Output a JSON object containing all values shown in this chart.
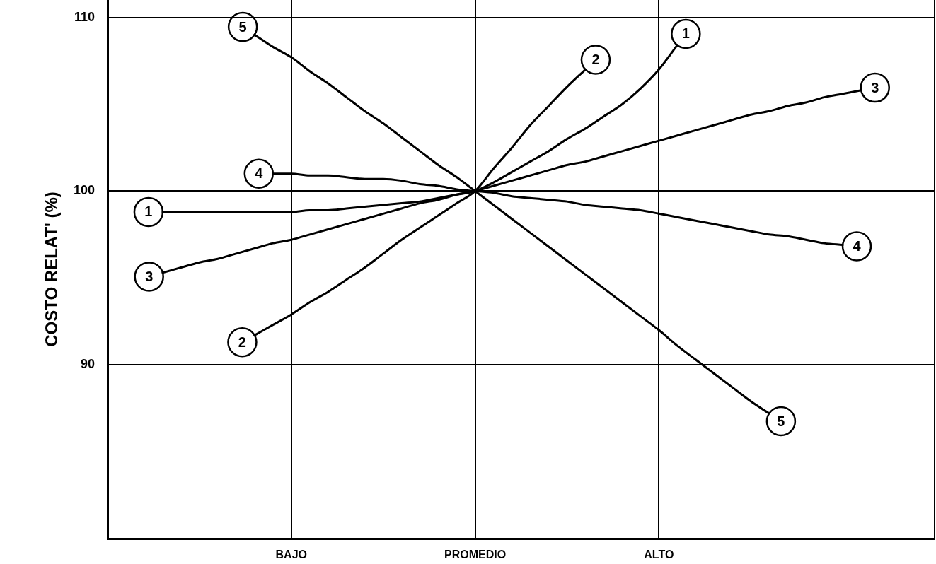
{
  "chart_data": {
    "type": "line",
    "ylabel": "COSTO RELAT' (%)",
    "categories": [
      null,
      null,
      null,
      null,
      null,
      null,
      null,
      null,
      null,
      null,
      "BAJO",
      null,
      null,
      null,
      null,
      null,
      null,
      null,
      null,
      null,
      "PROMEDIO",
      null,
      null,
      null,
      null,
      null,
      null,
      null,
      null,
      null,
      "ALTO",
      null,
      null,
      null,
      null,
      null,
      null,
      null,
      null,
      null,
      null,
      null,
      null,
      null,
      null,
      null
    ],
    "ylim": [
      80,
      111
    ],
    "yticks": [
      90,
      100,
      110
    ],
    "grid": true,
    "marker": "none",
    "series": [
      {
        "name": "1",
        "color": "#000000",
        "values": [
          null,
          null,
          null,
          98.8,
          98.8,
          98.8,
          98.8,
          98.8,
          98.8,
          98.8,
          98.8,
          98.9,
          98.9,
          99.0,
          99.1,
          99.2,
          99.3,
          99.4,
          99.6,
          99.8,
          100,
          100.5,
          101.1,
          101.7,
          102.3,
          103.0,
          103.6,
          104.3,
          105.0,
          105.9,
          107.0,
          108.4,
          null,
          null,
          null,
          null,
          null,
          null,
          null,
          null,
          null,
          null,
          null,
          null,
          null,
          null
        ]
      },
      {
        "name": "2",
        "color": "#000000",
        "values": [
          null,
          null,
          null,
          null,
          null,
          null,
          null,
          null,
          91.7,
          92.3,
          92.9,
          93.6,
          94.2,
          94.9,
          95.6,
          96.4,
          97.2,
          97.9,
          98.6,
          99.3,
          100,
          101.3,
          102.5,
          103.8,
          104.9,
          106.0,
          107.0,
          null,
          null,
          null,
          null,
          null,
          null,
          null,
          null,
          null,
          null,
          null,
          null,
          null,
          null,
          null,
          null,
          null,
          null,
          null
        ]
      },
      {
        "name": "3",
        "color": "#000000",
        "values": [
          null,
          null,
          null,
          95.3,
          95.6,
          95.9,
          96.1,
          96.4,
          96.7,
          97.0,
          97.2,
          97.5,
          97.8,
          98.1,
          98.4,
          98.7,
          99.0,
          99.3,
          99.5,
          99.8,
          100,
          100.3,
          100.6,
          100.9,
          101.2,
          101.5,
          101.7,
          102.0,
          102.3,
          102.6,
          102.9,
          103.2,
          103.5,
          103.8,
          104.1,
          104.4,
          104.6,
          104.9,
          105.1,
          105.4,
          105.6,
          105.8,
          null,
          null,
          null,
          null
        ]
      },
      {
        "name": "4",
        "color": "#000000",
        "values": [
          null,
          null,
          null,
          null,
          null,
          null,
          null,
          null,
          null,
          101.0,
          101.0,
          100.9,
          100.9,
          100.8,
          100.7,
          100.7,
          100.6,
          100.4,
          100.3,
          100.1,
          100,
          99.9,
          99.7,
          99.6,
          99.5,
          99.4,
          99.2,
          99.1,
          99.0,
          98.9,
          98.7,
          98.5,
          98.3,
          98.1,
          97.9,
          97.7,
          97.5,
          97.4,
          97.2,
          97.0,
          96.9,
          null,
          null,
          null,
          null,
          null
        ]
      },
      {
        "name": "5",
        "color": "#000000",
        "values": [
          null,
          null,
          null,
          null,
          null,
          null,
          null,
          null,
          109.0,
          108.3,
          107.7,
          106.9,
          106.2,
          105.4,
          104.6,
          103.9,
          103.1,
          102.3,
          101.5,
          100.8,
          100,
          99.2,
          98.4,
          97.6,
          96.8,
          96.0,
          95.2,
          94.4,
          93.6,
          92.8,
          92.0,
          91.1,
          90.3,
          89.5,
          88.7,
          87.9,
          87.2,
          null,
          null,
          null,
          null,
          null,
          null,
          null,
          null,
          null
        ]
      }
    ]
  }
}
